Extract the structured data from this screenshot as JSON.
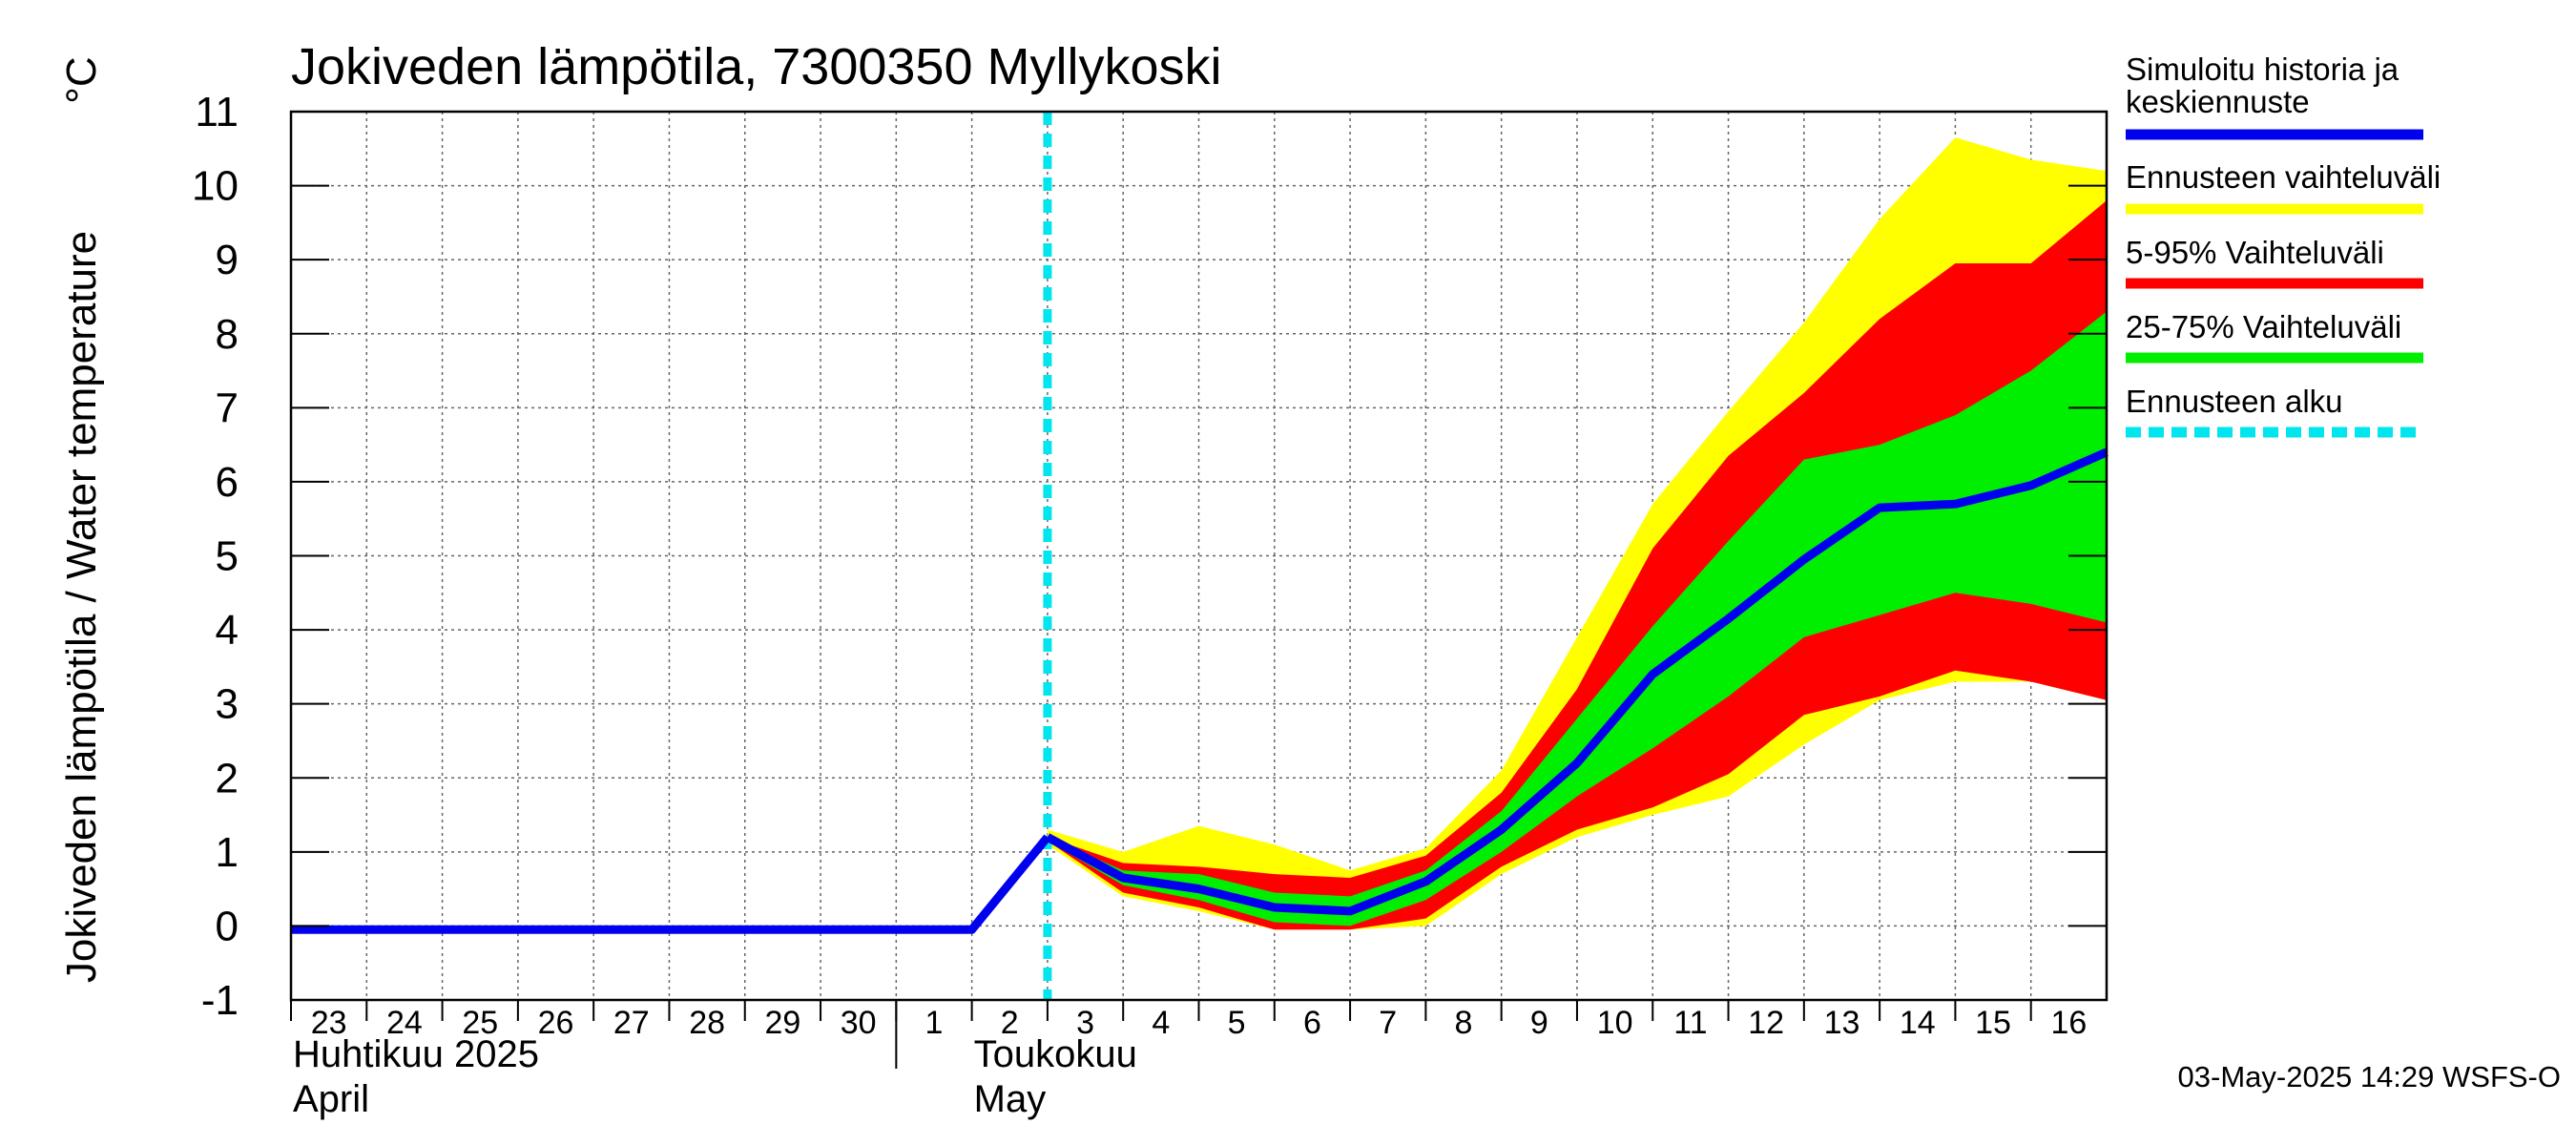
{
  "chart_data": {
    "type": "area",
    "title": "Jokiveden lämpötila, 7300350 Myllykoski",
    "ylabel": "Jokiveden lämpötila / Water temperature",
    "yunit": "°C",
    "ylim": [
      -1,
      11
    ],
    "yticks": [
      "-1",
      "0",
      "1",
      "2",
      "3",
      "4",
      "5",
      "6",
      "7",
      "8",
      "9",
      "10",
      "11"
    ],
    "x_day_labels": [
      "23",
      "24",
      "25",
      "26",
      "27",
      "28",
      "29",
      "30",
      "1",
      "2",
      "3",
      "4",
      "5",
      "6",
      "7",
      "8",
      "9",
      "10",
      "11",
      "12",
      "13",
      "14",
      "15",
      "16"
    ],
    "months": [
      {
        "fi": "Huhtikuu  2025",
        "en": "April"
      },
      {
        "fi": "Toukokuu",
        "en": "May"
      }
    ],
    "grid": true,
    "legend_position": "right",
    "forecast_start": "2025-05-03",
    "history": {
      "dates": [
        "2025-04-23",
        "2025-04-24",
        "2025-04-25",
        "2025-04-26",
        "2025-04-27",
        "2025-04-28",
        "2025-04-29",
        "2025-04-30",
        "2025-05-01",
        "2025-05-02",
        "2025-05-03"
      ],
      "values": [
        -0.05,
        -0.05,
        -0.05,
        -0.05,
        -0.05,
        -0.05,
        -0.05,
        -0.05,
        -0.05,
        -0.05,
        1.2
      ]
    },
    "forecast_dates": [
      "2025-05-03",
      "2025-05-04",
      "2025-05-05",
      "2025-05-06",
      "2025-05-07",
      "2025-05-08",
      "2025-05-09",
      "2025-05-10",
      "2025-05-11",
      "2025-05-12",
      "2025-05-13",
      "2025-05-14",
      "2025-05-15",
      "2025-05-16",
      "2025-05-17"
    ],
    "series": [
      {
        "name": "Ennusteen vaihteluväli",
        "color": "#ffff00",
        "kind": "band",
        "upper": [
          1.3,
          1.0,
          1.35,
          1.1,
          0.75,
          1.05,
          2.1,
          3.9,
          5.7,
          6.95,
          8.15,
          9.55,
          10.65,
          10.35,
          10.2
        ],
        "lower": [
          1.1,
          0.4,
          0.2,
          -0.05,
          -0.05,
          0.0,
          0.7,
          1.2,
          1.5,
          1.75,
          2.45,
          3.05,
          3.3,
          3.3,
          3.05
        ]
      },
      {
        "name": "5-95% Vaihteluväli",
        "color": "#ff0000",
        "kind": "band",
        "upper": [
          1.2,
          0.85,
          0.8,
          0.7,
          0.65,
          0.95,
          1.8,
          3.2,
          5.1,
          6.35,
          7.2,
          8.2,
          8.95,
          8.95,
          9.8
        ],
        "lower": [
          1.15,
          0.45,
          0.25,
          -0.05,
          -0.05,
          0.1,
          0.8,
          1.3,
          1.6,
          2.05,
          2.85,
          3.1,
          3.45,
          3.3,
          3.05
        ]
      },
      {
        "name": "25-75% Vaihteluväli",
        "color": "#00ee00",
        "kind": "band",
        "upper": [
          1.2,
          0.75,
          0.7,
          0.45,
          0.4,
          0.75,
          1.55,
          2.8,
          4.05,
          5.2,
          6.3,
          6.5,
          6.9,
          7.5,
          8.3
        ],
        "lower": [
          1.15,
          0.55,
          0.35,
          0.05,
          0.0,
          0.35,
          1.0,
          1.75,
          2.4,
          3.1,
          3.9,
          4.2,
          4.5,
          4.35,
          4.1
        ]
      },
      {
        "name": "Simuloitu historia ja keskiennuste",
        "color": "#0000ee",
        "kind": "line",
        "values": [
          1.2,
          0.65,
          0.5,
          0.25,
          0.2,
          0.6,
          1.3,
          2.2,
          3.4,
          4.15,
          4.95,
          5.65,
          5.7,
          5.95,
          6.4
        ]
      }
    ],
    "legend": [
      {
        "label": "Simuloitu historia ja keskiennuste",
        "color": "#0000ee",
        "style": "line"
      },
      {
        "label": "Ennusteen vaihteluväli",
        "color": "#ffff00",
        "style": "line"
      },
      {
        "label": "5-95% Vaihteluväli",
        "color": "#ff0000",
        "style": "line"
      },
      {
        "label": "25-75% Vaihteluväli",
        "color": "#00ee00",
        "style": "line"
      },
      {
        "label": "Ennusteen alku",
        "color": "#00e5ee",
        "style": "dashed"
      }
    ],
    "timestamp": "03-May-2025 14:29 WSFS-O"
  }
}
